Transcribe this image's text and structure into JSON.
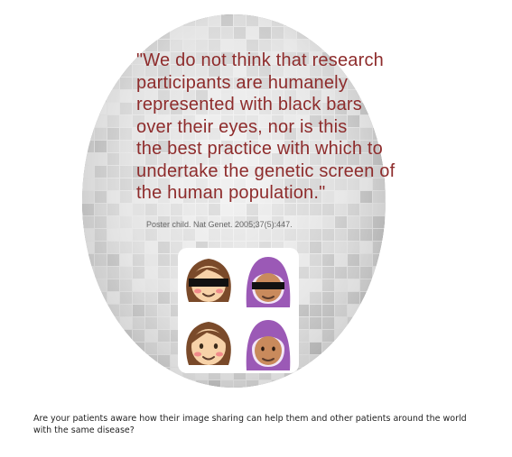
{
  "quote": {
    "text": "\"We do not think that research\nparticipants are humanely\nrepresented with black bars\nover their eyes, nor is this\nthe best practice with which to\nundertake the genetic screen of\nthe human population.\"",
    "citation": "Poster child. Nat Genet. 2005;37(5):447."
  },
  "caption": {
    "text": "Are your patients aware how their image sharing can help them and other patients around the world with the same disease?"
  },
  "emojis": [
    {
      "name": "woman-censored-icon",
      "hair": "brown",
      "censored": true
    },
    {
      "name": "woman-hijab-censored-icon",
      "hair": "purple-hijab",
      "censored": true
    },
    {
      "name": "woman-icon",
      "hair": "brown",
      "censored": false
    },
    {
      "name": "woman-hijab-icon",
      "hair": "purple-hijab",
      "censored": false
    }
  ],
  "colors": {
    "quote_text": "#8e2c2c",
    "citation_text": "#666666",
    "caption_text": "#222222",
    "hair_brown": "#7a4a2a",
    "hijab_purple": "#9b59b6",
    "skin_light": "#f7d2a8",
    "skin_tan": "#c98a5c",
    "censor_bar": "#111111",
    "blush": "#f08a8a"
  }
}
